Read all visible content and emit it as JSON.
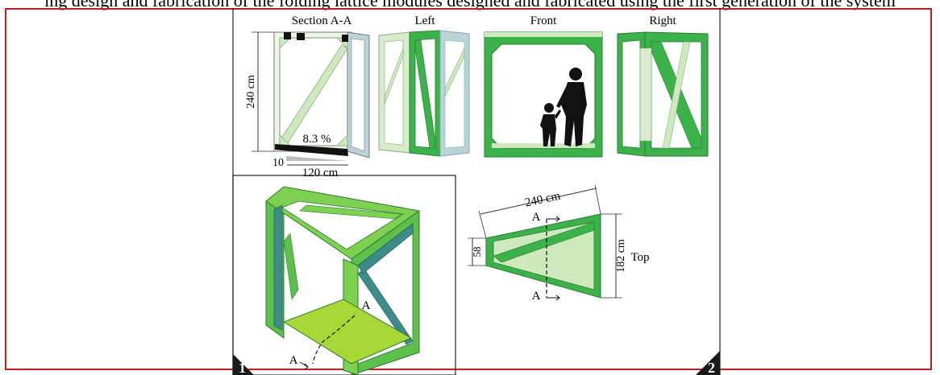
{
  "header_cut_text": "ing design and fabrication of the folding lattice modules designed and fabricated using the first generation of the system",
  "views": {
    "section": "Section A-A",
    "left": "Left",
    "front": "Front",
    "right": "Right",
    "top": "Top"
  },
  "dimensions": {
    "height": "240 cm",
    "slope": "8.3 %",
    "offset": "10",
    "depth": "120 cm",
    "width": "240 cm",
    "narrow": "58",
    "wide": "182 cm"
  },
  "section_markers": {
    "a1": "A",
    "a2": "A",
    "a3": "A",
    "a4": "A"
  },
  "corner_labels": {
    "one": "1",
    "two": "2"
  },
  "colors": {
    "green": "#3cb34a",
    "light_green": "#b8e0a8",
    "teal": "#3d8c8a",
    "frame_red": "#c0201a"
  }
}
